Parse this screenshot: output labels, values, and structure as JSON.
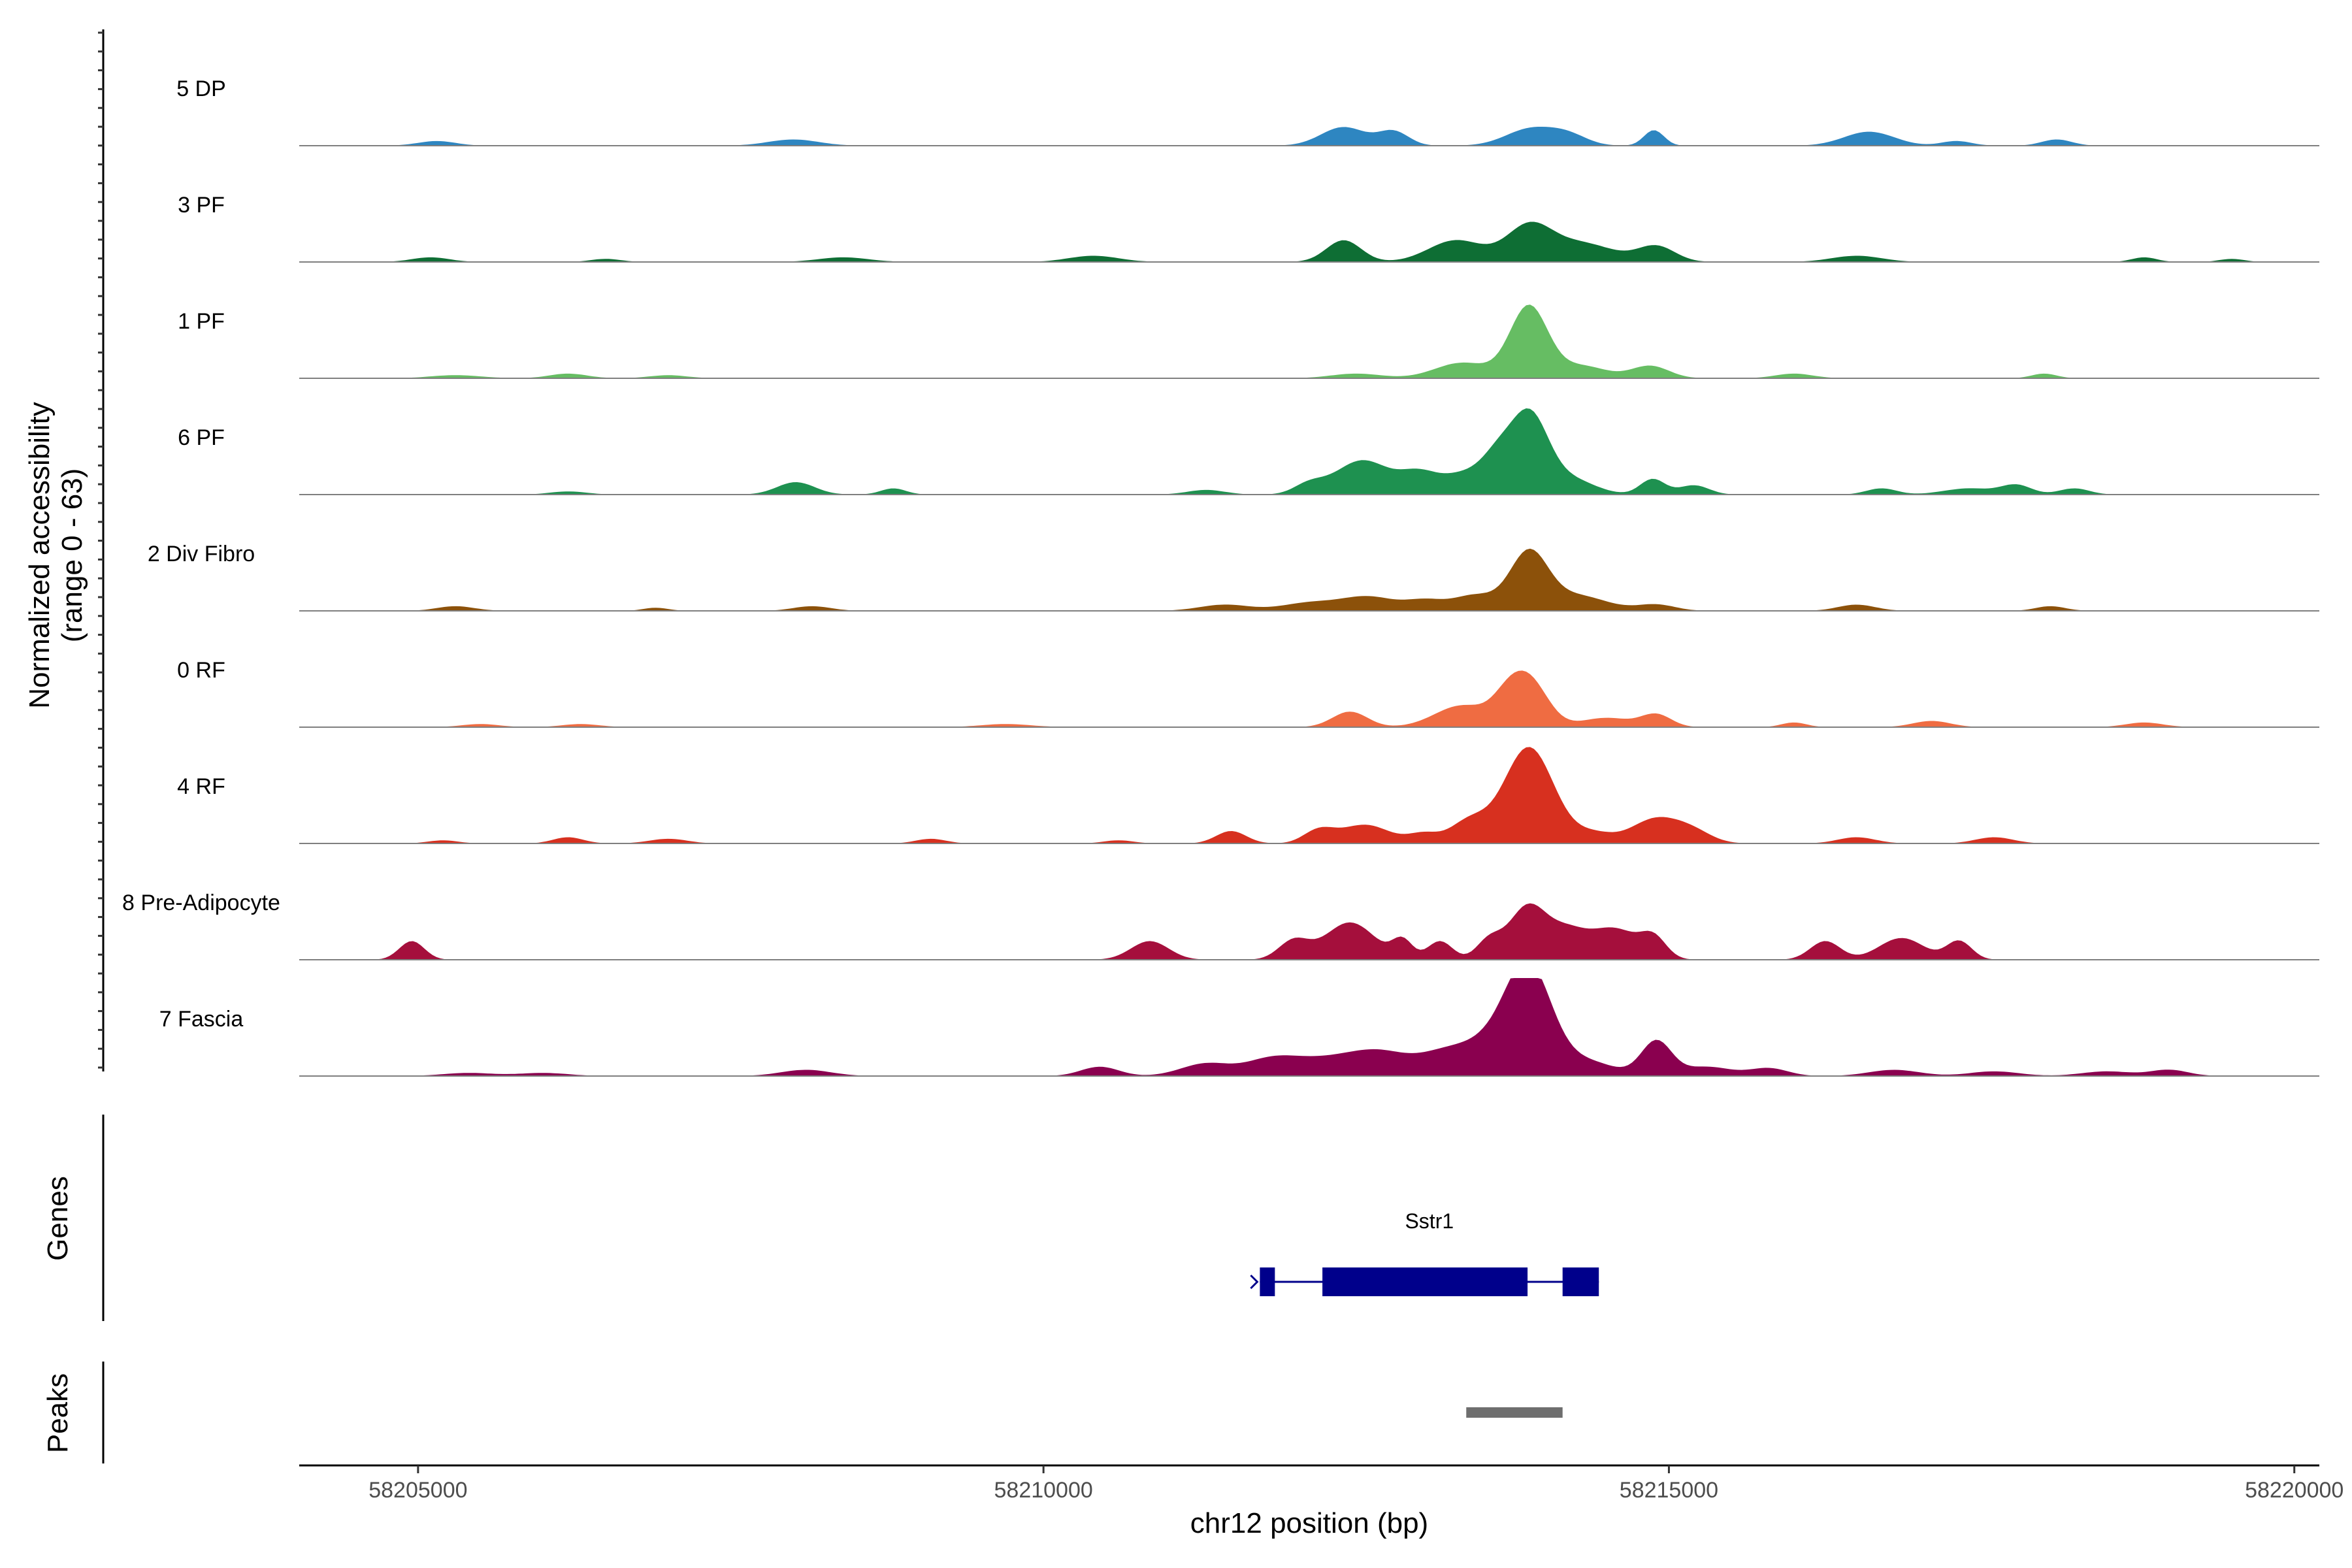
{
  "chart_data": {
    "type": "area",
    "title": "",
    "ylabel": "Normalized accessibility",
    "ylabel_range": "(range 0 - 63)",
    "ylim": [
      0,
      63
    ],
    "xlabel": "chr12 position (bp)",
    "xlim": [
      58204050,
      58220200
    ],
    "x_ticks": [
      58205000,
      58210000,
      58215000,
      58220000
    ],
    "x_tick_labels": [
      "58205000",
      "58210000",
      "58215000",
      "58220000"
    ],
    "series": [
      {
        "name": "5 DP",
        "color": "#2e86c1",
        "peaks": [
          [
            58205150,
            3,
            150
          ],
          [
            58208000,
            4,
            200
          ],
          [
            58212400,
            12,
            180
          ],
          [
            58212800,
            9,
            120
          ],
          [
            58213900,
            11,
            200
          ],
          [
            58214200,
            6,
            150
          ],
          [
            58214880,
            10,
            80
          ],
          [
            58216600,
            9,
            200
          ],
          [
            58217300,
            3,
            120
          ],
          [
            58218100,
            4,
            120
          ]
        ]
      },
      {
        "name": "3 PF",
        "color": "#0e6e34",
        "peaks": [
          [
            58205100,
            3,
            150
          ],
          [
            58206500,
            2,
            120
          ],
          [
            58208400,
            3,
            200
          ],
          [
            58210400,
            4,
            200
          ],
          [
            58212400,
            14,
            140
          ],
          [
            58213300,
            14,
            220
          ],
          [
            58213880,
            22,
            180
          ],
          [
            58214300,
            12,
            260
          ],
          [
            58214900,
            10,
            150
          ],
          [
            58216500,
            4,
            200
          ],
          [
            58218800,
            3,
            100
          ],
          [
            58219500,
            2,
            100
          ]
        ]
      },
      {
        "name": "1 PF",
        "color": "#66bd63",
        "peaks": [
          [
            58205300,
            2,
            200
          ],
          [
            58206200,
            3,
            150
          ],
          [
            58207000,
            2,
            150
          ],
          [
            58212500,
            3,
            200
          ],
          [
            58213350,
            10,
            220
          ],
          [
            58213880,
            46,
            150
          ],
          [
            58214300,
            8,
            200
          ],
          [
            58214850,
            8,
            150
          ],
          [
            58216000,
            3,
            150
          ],
          [
            58218000,
            3,
            100
          ]
        ]
      },
      {
        "name": "6 PF",
        "color": "#1e9150",
        "peaks": [
          [
            58206200,
            2,
            150
          ],
          [
            58208020,
            8,
            150
          ],
          [
            58208800,
            4,
            100
          ],
          [
            58211300,
            3,
            150
          ],
          [
            58212120,
            6,
            120
          ],
          [
            58212550,
            22,
            220
          ],
          [
            58213000,
            12,
            150
          ],
          [
            58213400,
            14,
            200
          ],
          [
            58213630,
            16,
            120
          ],
          [
            58213880,
            50,
            150
          ],
          [
            58214200,
            10,
            200
          ],
          [
            58214870,
            10,
            100
          ],
          [
            58215200,
            6,
            120
          ],
          [
            58216700,
            4,
            120
          ],
          [
            58217400,
            4,
            200
          ],
          [
            58217780,
            6,
            120
          ],
          [
            58218240,
            4,
            120
          ]
        ]
      },
      {
        "name": "2 Div Fibro",
        "color": "#8c510a",
        "peaks": [
          [
            58205300,
            3,
            150
          ],
          [
            58206900,
            2,
            100
          ],
          [
            58208150,
            3,
            150
          ],
          [
            58211450,
            4,
            200
          ],
          [
            58212120,
            5,
            220
          ],
          [
            58212600,
            9,
            220
          ],
          [
            58213050,
            6,
            150
          ],
          [
            58213450,
            10,
            180
          ],
          [
            58213880,
            36,
            150
          ],
          [
            58214250,
            10,
            250
          ],
          [
            58214900,
            4,
            150
          ],
          [
            58216500,
            4,
            150
          ],
          [
            58218050,
            3,
            120
          ]
        ]
      },
      {
        "name": "0 RF",
        "color": "#ef6c42",
        "peaks": [
          [
            58205500,
            2,
            150
          ],
          [
            58206300,
            2,
            150
          ],
          [
            58209700,
            2,
            200
          ],
          [
            58212450,
            10,
            140
          ],
          [
            58213350,
            14,
            220
          ],
          [
            58213700,
            12,
            120
          ],
          [
            58213880,
            30,
            150
          ],
          [
            58214500,
            6,
            200
          ],
          [
            58214900,
            8,
            120
          ],
          [
            58216000,
            3,
            100
          ],
          [
            58217100,
            4,
            150
          ],
          [
            58218800,
            3,
            150
          ]
        ]
      },
      {
        "name": "4 RF",
        "color": "#d7301f",
        "peaks": [
          [
            58205200,
            2,
            120
          ],
          [
            58206200,
            4,
            120
          ],
          [
            58207000,
            3,
            150
          ],
          [
            58209100,
            3,
            120
          ],
          [
            58210600,
            2,
            120
          ],
          [
            58211500,
            8,
            120
          ],
          [
            58212200,
            8,
            120
          ],
          [
            58212570,
            12,
            200
          ],
          [
            58213040,
            6,
            120
          ],
          [
            58213400,
            14,
            150
          ],
          [
            58213880,
            62,
            200
          ],
          [
            58214400,
            6,
            150
          ],
          [
            58214900,
            16,
            200
          ],
          [
            58215200,
            6,
            150
          ],
          [
            58216500,
            4,
            150
          ],
          [
            58217600,
            4,
            150
          ]
        ]
      },
      {
        "name": "8 Pre-Adipocyte",
        "color": "#a50f3c",
        "peaks": [
          [
            58204950,
            12,
            100
          ],
          [
            58210850,
            12,
            150
          ],
          [
            58212000,
            12,
            120
          ],
          [
            58212450,
            24,
            200
          ],
          [
            58212870,
            12,
            80
          ],
          [
            58213170,
            12,
            100
          ],
          [
            58213560,
            12,
            100
          ],
          [
            58213870,
            34,
            150
          ],
          [
            58214180,
            16,
            150
          ],
          [
            58214560,
            20,
            200
          ],
          [
            58214880,
            12,
            100
          ],
          [
            58216250,
            12,
            120
          ],
          [
            58216860,
            14,
            180
          ],
          [
            58217320,
            12,
            100
          ]
        ]
      },
      {
        "name": "7 Fascia",
        "color": "#8a004f",
        "peaks": [
          [
            58205400,
            2,
            200
          ],
          [
            58206000,
            2,
            200
          ],
          [
            58208100,
            4,
            200
          ],
          [
            58210450,
            6,
            150
          ],
          [
            58211300,
            8,
            200
          ],
          [
            58211800,
            8,
            200
          ],
          [
            58212200,
            10,
            300
          ],
          [
            58212700,
            14,
            250
          ],
          [
            58213200,
            12,
            200
          ],
          [
            58213580,
            20,
            220
          ],
          [
            58213880,
            64,
            180
          ],
          [
            58214300,
            10,
            250
          ],
          [
            58214900,
            22,
            120
          ],
          [
            58215300,
            6,
            200
          ],
          [
            58215800,
            5,
            150
          ],
          [
            58216800,
            4,
            200
          ],
          [
            58217600,
            3,
            200
          ],
          [
            58218500,
            3,
            200
          ],
          [
            58219000,
            4,
            150
          ]
        ]
      }
    ],
    "genes": [
      {
        "name": "Sstr1",
        "start": 58211730,
        "end": 58214440,
        "strand": "+",
        "exons": [
          [
            58211730,
            58211850
          ],
          [
            58212230,
            58213870
          ],
          [
            58214150,
            58214440
          ]
        ]
      }
    ],
    "peaks_track": [
      [
        58213380,
        58214150
      ]
    ],
    "track_labels": {
      "genes": "Genes",
      "peaks": "Peaks"
    }
  }
}
